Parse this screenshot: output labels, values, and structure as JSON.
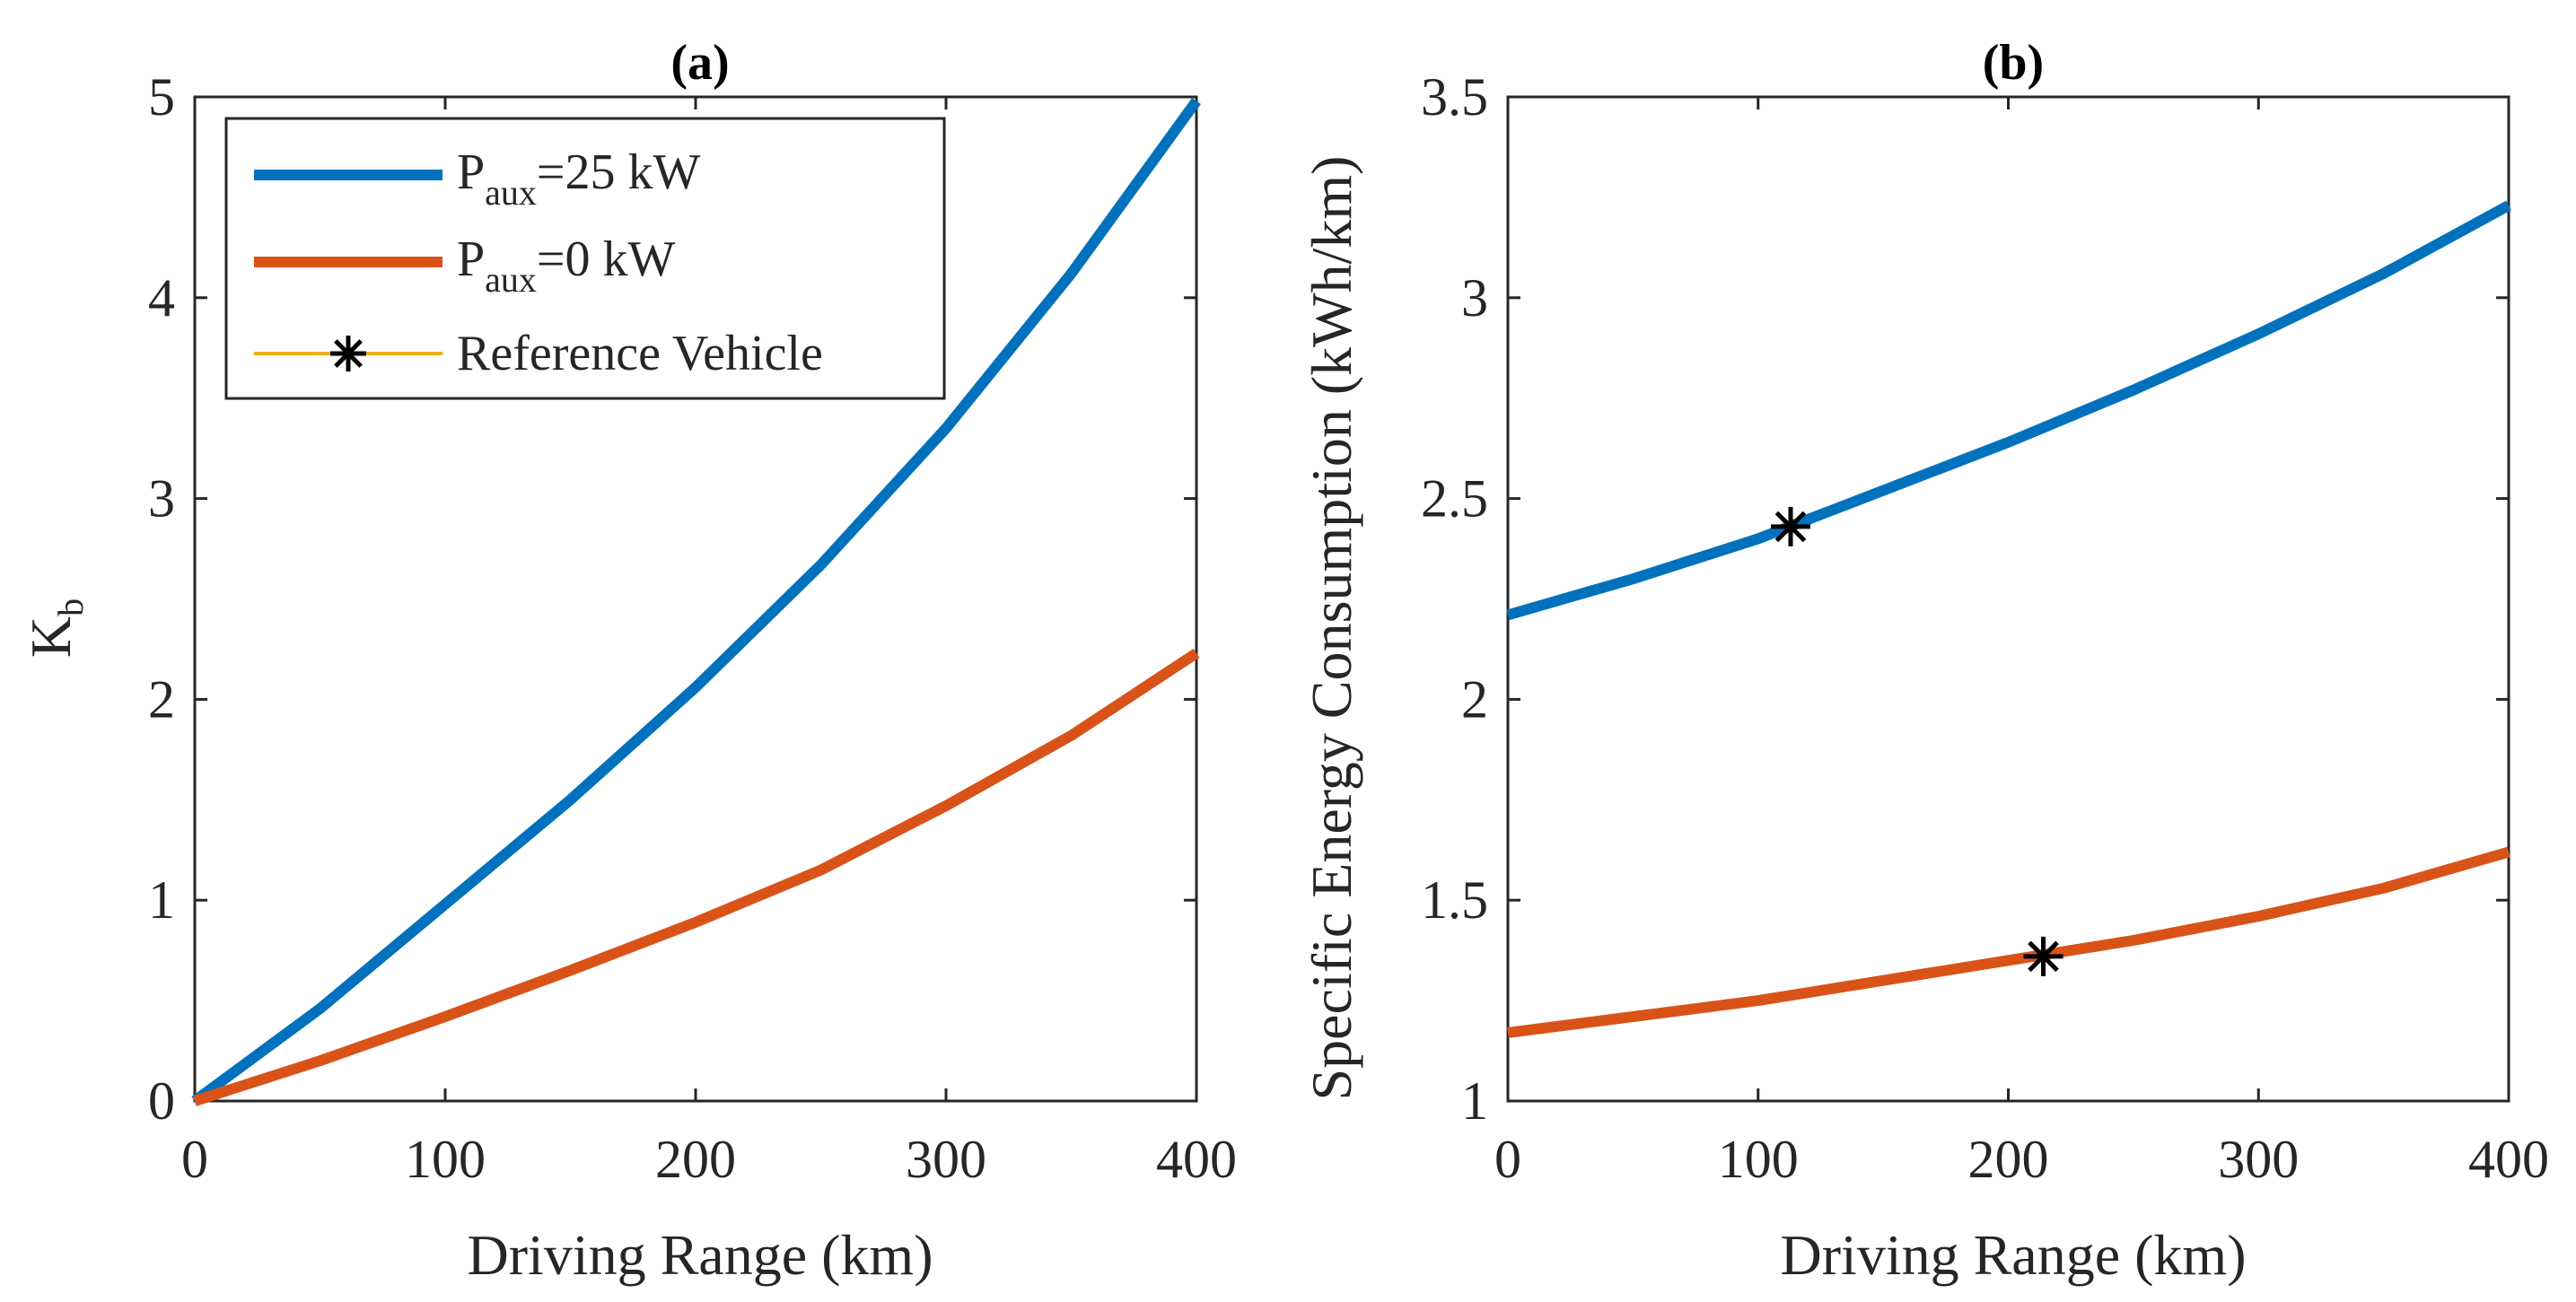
{
  "colors": {
    "blue": "#0072BD",
    "orange": "#D95319",
    "ref_line": "#EDB120",
    "marker": "#000000",
    "axis": "#262626"
  },
  "chart_data": [
    {
      "type": "line",
      "title": "(a)",
      "xlabel": "Driving Range (km)",
      "ylabel_main": "K",
      "ylabel_sub": "b",
      "xlim": [
        0,
        400
      ],
      "ylim": [
        0,
        5
      ],
      "xticks": [
        "0",
        "100",
        "200",
        "300",
        "400"
      ],
      "yticks": [
        "0",
        "1",
        "2",
        "3",
        "4",
        "5"
      ],
      "legend": {
        "placement": "top-left",
        "entries": [
          {
            "main": "P",
            "sub": "aux",
            "rest": "=25 kW",
            "color": "#0072BD"
          },
          {
            "main": "P",
            "sub": "aux",
            "rest": "=0 kW",
            "color": "#D95319"
          },
          {
            "main": "",
            "sub": "",
            "rest": "Reference Vehicle",
            "color": "#EDB120",
            "marker": "asterisk"
          }
        ]
      },
      "series": [
        {
          "name": "Paux=25 kW",
          "color": "#0072BD",
          "x": [
            0,
            50,
            100,
            150,
            200,
            250,
            300,
            350,
            400
          ],
          "y": [
            0,
            0.46,
            0.98,
            1.5,
            2.06,
            2.67,
            3.35,
            4.12,
            4.98
          ]
        },
        {
          "name": "Paux=0 kW",
          "color": "#D95319",
          "x": [
            0,
            50,
            100,
            150,
            200,
            250,
            300,
            350,
            400
          ],
          "y": [
            0,
            0.2,
            0.42,
            0.65,
            0.89,
            1.15,
            1.47,
            1.82,
            2.23
          ]
        }
      ]
    },
    {
      "type": "line",
      "title": "(b)",
      "xlabel": "Driving Range (km)",
      "ylabel": "Specific Energy Consumption (kWh/km)",
      "xlim": [
        0,
        400
      ],
      "ylim": [
        1,
        3.5
      ],
      "xticks": [
        "0",
        "100",
        "200",
        "300",
        "400"
      ],
      "yticks": [
        "1",
        "1.5",
        "2",
        "2.5",
        "3",
        "3.5"
      ],
      "series": [
        {
          "name": "Paux=25 kW",
          "color": "#0072BD",
          "x": [
            0,
            50,
            100,
            150,
            200,
            250,
            300,
            350,
            400
          ],
          "y": [
            2.21,
            2.3,
            2.4,
            2.52,
            2.64,
            2.77,
            2.91,
            3.06,
            3.23
          ]
        },
        {
          "name": "Paux=0 kW",
          "color": "#D95319",
          "x": [
            0,
            50,
            100,
            150,
            200,
            250,
            300,
            350,
            400
          ],
          "y": [
            1.17,
            1.21,
            1.25,
            1.3,
            1.35,
            1.4,
            1.46,
            1.53,
            1.62
          ]
        }
      ],
      "reference_points": [
        {
          "series": "Paux=25 kW",
          "x": 113,
          "y": 2.43
        },
        {
          "series": "Paux=0 kW",
          "x": 214,
          "y": 1.36
        }
      ]
    }
  ]
}
